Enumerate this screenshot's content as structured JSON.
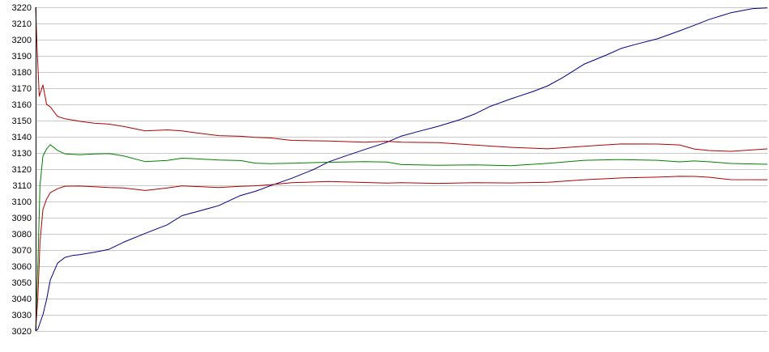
{
  "chart_data": {
    "type": "line",
    "title": "",
    "xlabel": "",
    "ylabel": "",
    "ylim": [
      3020,
      3220
    ],
    "ytick_step": 10,
    "grid": true,
    "xlim": [
      0,
      100
    ],
    "x_labels_shown": false,
    "legend": "none",
    "series": [
      {
        "color": "#00008b",
        "x": [
          0,
          0.3,
          0.6,
          1,
          1.5,
          2,
          3,
          4,
          5,
          6,
          8,
          10,
          12,
          15,
          18,
          20,
          22,
          25,
          28,
          30,
          32,
          35,
          38,
          40,
          42,
          45,
          48,
          50,
          52,
          55,
          58,
          60,
          62,
          65,
          68,
          70,
          72,
          75,
          78,
          80,
          82,
          85,
          88,
          90,
          92,
          95,
          98,
          100
        ],
        "values": [
          3020,
          3021,
          3025,
          3030,
          3040,
          3052,
          3062,
          3065,
          3066,
          3067,
          3069,
          3071,
          3075,
          3080,
          3085,
          3091,
          3094,
          3098,
          3104,
          3106,
          3109,
          3114,
          3120,
          3125,
          3128,
          3132,
          3136,
          3140,
          3143,
          3147,
          3151,
          3154,
          3158,
          3163,
          3168,
          3172,
          3177,
          3185,
          3190,
          3194,
          3197,
          3201,
          3206,
          3209,
          3212,
          3216,
          3219,
          3220
        ]
      },
      {
        "color": "#b00000",
        "x": [
          0,
          0.2,
          0.5,
          1,
          1.5,
          2,
          3,
          4,
          6,
          8,
          10,
          12,
          15,
          18,
          20,
          22,
          25,
          28,
          30,
          32,
          35,
          40,
          45,
          48,
          50,
          55,
          60,
          65,
          70,
          75,
          80,
          85,
          88,
          90,
          92,
          95,
          100
        ],
        "values": [
          3220,
          3195,
          3165,
          3172,
          3160,
          3158,
          3152,
          3151,
          3150,
          3149,
          3148,
          3146,
          3143,
          3144,
          3144,
          3143,
          3141,
          3140,
          3139,
          3139,
          3138,
          3138,
          3137,
          3137,
          3136,
          3136,
          3135,
          3134,
          3133,
          3134,
          3135,
          3135,
          3135,
          3133,
          3132,
          3131,
          3132
        ]
      },
      {
        "color": "#008000",
        "x": [
          0,
          0.3,
          0.6,
          1,
          1.5,
          2,
          3,
          4,
          6,
          8,
          10,
          12,
          15,
          18,
          20,
          22,
          25,
          28,
          30,
          32,
          35,
          40,
          45,
          48,
          50,
          55,
          60,
          65,
          70,
          75,
          80,
          85,
          88,
          90,
          92,
          95,
          100
        ],
        "values": [
          3020,
          3060,
          3110,
          3128,
          3132,
          3135,
          3132,
          3130,
          3129,
          3129,
          3129,
          3128,
          3125,
          3126,
          3127,
          3126,
          3125,
          3125,
          3124,
          3124,
          3124,
          3124,
          3124,
          3124,
          3123,
          3123,
          3123,
          3122,
          3123,
          3125,
          3126,
          3126,
          3125,
          3125,
          3124,
          3123,
          3123
        ]
      },
      {
        "color": "#b00000",
        "x": [
          0,
          0.3,
          0.6,
          1,
          1.5,
          2,
          3,
          4,
          6,
          8,
          10,
          12,
          15,
          18,
          20,
          22,
          25,
          28,
          30,
          32,
          35,
          40,
          45,
          48,
          50,
          55,
          60,
          65,
          70,
          75,
          80,
          85,
          88,
          90,
          92,
          95,
          100
        ],
        "values": [
          3020,
          3040,
          3075,
          3095,
          3102,
          3106,
          3108,
          3109,
          3109,
          3109,
          3109,
          3109,
          3107,
          3108,
          3109,
          3109,
          3109,
          3110,
          3110,
          3110,
          3111,
          3112,
          3112,
          3112,
          3112,
          3111,
          3111,
          3111,
          3112,
          3114,
          3115,
          3115,
          3115,
          3115,
          3115,
          3114,
          3114
        ]
      }
    ]
  }
}
